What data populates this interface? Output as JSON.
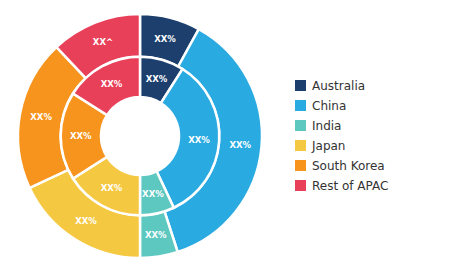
{
  "chart_data": {
    "type": "pie",
    "categories": [
      "Australia",
      "China",
      "India",
      "Japan",
      "South Korea",
      "Rest of APAC"
    ],
    "colors": [
      "#1c3f6e",
      "#29abe2",
      "#5dc8c0",
      "#f5c842",
      "#f7941d",
      "#e84059"
    ],
    "series": [
      {
        "values": [
          8,
          37,
          5,
          18,
          20,
          12
        ],
        "value_labels": [
          "XX%",
          "XX%",
          "XX%",
          "XX%",
          "XX%",
          "XX^"
        ]
      },
      {
        "values": [
          9,
          34,
          7,
          16,
          18,
          16
        ],
        "value_labels": [
          "XX%",
          "XX%",
          "XX%",
          "XX%",
          "XX%",
          "XX%"
        ]
      }
    ],
    "data_labels": true,
    "legend": "right"
  }
}
